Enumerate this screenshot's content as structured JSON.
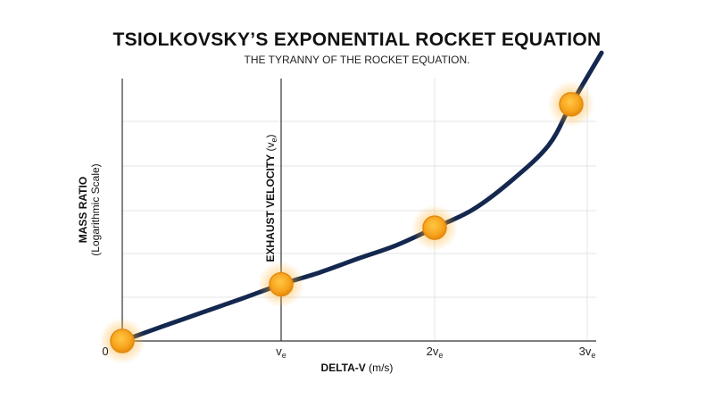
{
  "chart_data": {
    "type": "line",
    "title": "TSIOLKOVSKY’S EXPONENTIAL ROCKET EQUATION",
    "subtitle": "THE TYRANNY OF THE ROCKET EQUATION.",
    "xlabel_main": "DELTA-V",
    "xlabel_unit": "(m/s)",
    "ylabel_main": "MASS RATIO",
    "ylabel_sub": "(Logarithmic Scale)",
    "reference_line": {
      "x": 1,
      "label_main": "EXHAUST VELOCITY",
      "label_sym": "(v",
      "label_sub": "e",
      "label_close": ")"
    },
    "x_ticks": [
      {
        "value": 0,
        "label": "0",
        "sub": ""
      },
      {
        "value": 1,
        "label": "v",
        "sub": "e"
      },
      {
        "value": 2,
        "label": "2v",
        "sub": "e"
      },
      {
        "value": 3,
        "label": "3v",
        "sub": "e"
      }
    ],
    "xlim": [
      0,
      3.1
    ],
    "ylim": [
      0,
      5.1
    ],
    "grid": true,
    "series": [
      {
        "color": "#14284f",
        "points": [
          {
            "x": 0,
            "y": 0
          },
          {
            "x": 0.25,
            "y": 0.28
          },
          {
            "x": 0.5,
            "y": 0.55
          },
          {
            "x": 0.75,
            "y": 0.82
          },
          {
            "x": 1.0,
            "y": 1.1
          },
          {
            "x": 1.25,
            "y": 1.33
          },
          {
            "x": 1.5,
            "y": 1.6
          },
          {
            "x": 1.75,
            "y": 1.86
          },
          {
            "x": 2.0,
            "y": 2.2
          },
          {
            "x": 2.25,
            "y": 2.55
          },
          {
            "x": 2.5,
            "y": 3.1
          },
          {
            "x": 2.75,
            "y": 3.8
          },
          {
            "x": 2.9,
            "y": 4.6
          },
          {
            "x": 3.1,
            "y": 5.6
          }
        ]
      }
    ],
    "markers": [
      {
        "x": 0,
        "y": 0
      },
      {
        "x": 1,
        "y": 1.1
      },
      {
        "x": 2,
        "y": 2.2
      },
      {
        "x": 2.9,
        "y": 4.6
      }
    ],
    "marker_color": "#f7a21b"
  }
}
